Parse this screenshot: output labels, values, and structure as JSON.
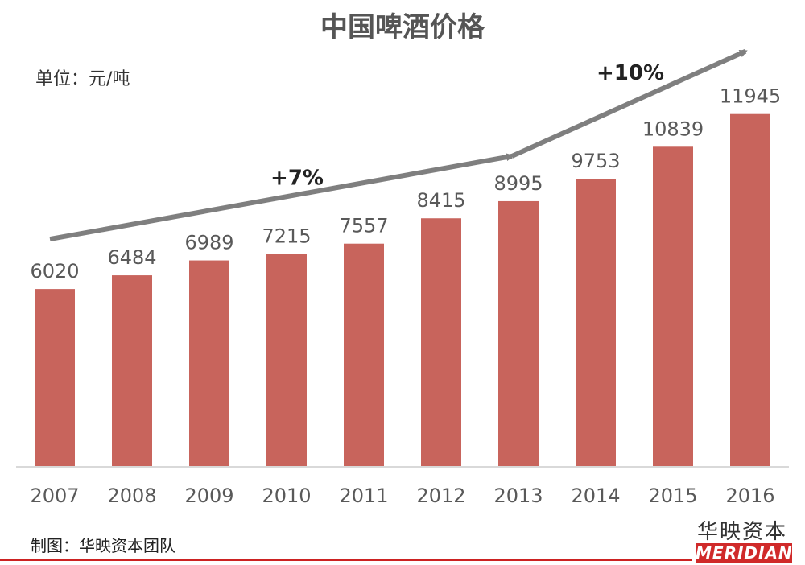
{
  "title": "中国啤酒价格",
  "unit": "单位：元/吨",
  "footer": {
    "credit": "制图：华映资本团队",
    "brand_cn": "华映资本",
    "brand_en": "MERIDIAN"
  },
  "colors": {
    "bar": "#c8645c",
    "arrow": "#7f7f7f",
    "axis": "#d9d9d9",
    "text": "#595959",
    "brand": "#d02a2a"
  },
  "chart_data": {
    "type": "bar",
    "title": "中国啤酒价格",
    "ylabel": "单位：元/吨",
    "categories": [
      "2007",
      "2008",
      "2009",
      "2010",
      "2011",
      "2012",
      "2013",
      "2014",
      "2015",
      "2016"
    ],
    "values": [
      6020,
      6484,
      6989,
      7215,
      7557,
      8415,
      8995,
      9753,
      10839,
      11945
    ],
    "ylim": [
      0,
      12700
    ],
    "grid": false,
    "annotations": [
      {
        "text": "+7%",
        "from": "2007",
        "to": "2013"
      },
      {
        "text": "+10%",
        "from": "2013",
        "to": "2016"
      }
    ]
  }
}
